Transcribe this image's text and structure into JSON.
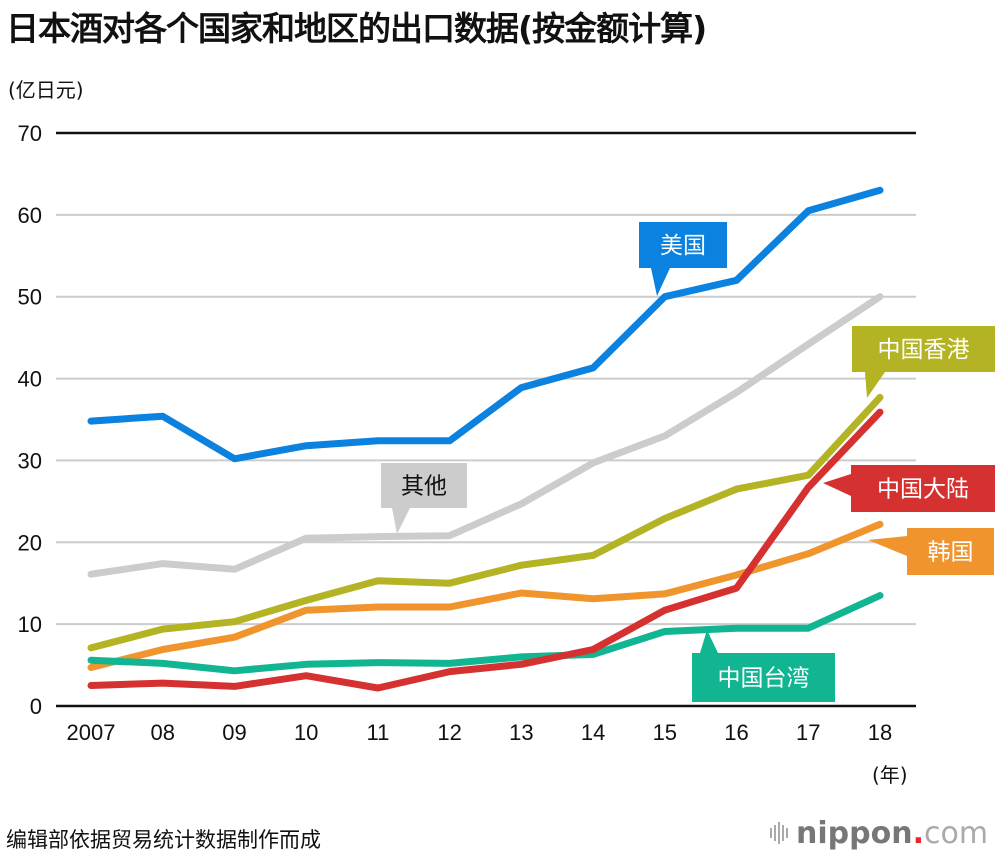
{
  "title": "日本酒对各个国家和地区的出口数据(按金额计算)",
  "y_unit": "(亿日元)",
  "x_unit": "(年)",
  "source": "编辑部依据贸易统计数据制作而成",
  "logo": {
    "icon": "soundwave-bars-icon",
    "brand": "nippon",
    "dot": ".",
    "tld": "com",
    "dot_color": "#e8262b"
  },
  "chart_data": {
    "type": "line",
    "title": "日本酒对各个国家和地区的出口数据(按金额计算)",
    "xlabel": "(年)",
    "ylabel": "(亿日元)",
    "x": [
      2007,
      2008,
      2009,
      2010,
      2011,
      2012,
      2013,
      2014,
      2015,
      2016,
      2017,
      2018
    ],
    "x_tick_labels": [
      "2007",
      "08",
      "09",
      "10",
      "11",
      "12",
      "13",
      "14",
      "15",
      "16",
      "17",
      "18"
    ],
    "y_ticks": [
      0,
      10,
      20,
      30,
      40,
      50,
      60,
      70
    ],
    "ylim": [
      0,
      70
    ],
    "grid": true,
    "legend": "inline-labels",
    "series": [
      {
        "name": "美国",
        "color": "#0b82df",
        "label_text_color": "#ffffff",
        "values": [
          34.8,
          35.4,
          30.2,
          31.8,
          32.4,
          32.4,
          38.9,
          41.3,
          50.0,
          52.0,
          60.5,
          63.0
        ]
      },
      {
        "name": "其他",
        "color": "#cccccc",
        "label_text_color": "#111111",
        "values": [
          16.1,
          17.4,
          16.7,
          20.5,
          20.7,
          20.8,
          24.7,
          29.7,
          33.0,
          38.3,
          44.2,
          50.0
        ]
      },
      {
        "name": "中国香港",
        "color": "#b3b324",
        "label_text_color": "#ffffff",
        "values": [
          7.1,
          9.4,
          10.3,
          12.9,
          15.3,
          15.0,
          17.2,
          18.4,
          22.9,
          26.5,
          28.2,
          37.7
        ]
      },
      {
        "name": "韩国",
        "color": "#f0952e",
        "label_text_color": "#ffffff",
        "values": [
          4.7,
          6.9,
          8.4,
          11.7,
          12.1,
          12.1,
          13.8,
          13.1,
          13.7,
          16.0,
          18.6,
          22.2
        ]
      },
      {
        "name": "中国台湾",
        "color": "#12b592",
        "label_text_color": "#ffffff",
        "values": [
          5.6,
          5.2,
          4.3,
          5.1,
          5.3,
          5.2,
          6.0,
          6.3,
          9.1,
          9.5,
          9.5,
          13.5
        ]
      },
      {
        "name": "中国大陆",
        "color": "#d63131",
        "label_text_color": "#ffffff",
        "values": [
          2.5,
          2.8,
          2.4,
          3.7,
          2.2,
          4.2,
          5.1,
          6.9,
          11.7,
          14.4,
          26.7,
          35.9
        ]
      }
    ]
  }
}
